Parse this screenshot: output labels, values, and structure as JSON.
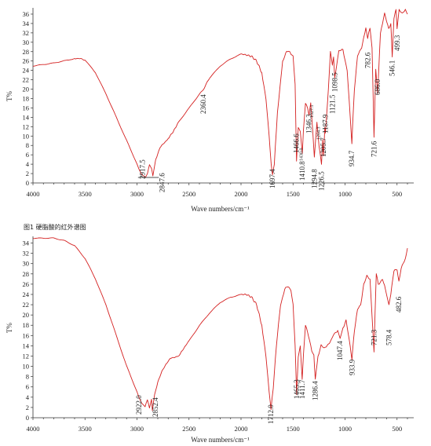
{
  "caption": "图1 硬脂酸的红外谱图",
  "chart_data": [
    {
      "type": "line",
      "xlabel": "Wave numbers/cm⁻¹",
      "ylabel": "T%",
      "xlim": [
        4000,
        400
      ],
      "ylim": [
        0,
        37
      ],
      "x_ticks": [
        4000,
        3500,
        3000,
        2500,
        2000,
        1500,
        1000,
        500
      ],
      "y_ticks": [
        0,
        2,
        4,
        6,
        8,
        10,
        12,
        14,
        16,
        18,
        20,
        22,
        24,
        26,
        28,
        30,
        32,
        34,
        36
      ],
      "series": [
        {
          "x": [
            4000,
            3800,
            3600,
            3560,
            3500,
            3400,
            3300,
            3200,
            3100,
            3000,
            2960,
            2930,
            2917.5,
            2900,
            2880,
            2860,
            2847.6,
            2820,
            2780,
            2740,
            2700,
            2650,
            2600,
            2500,
            2400,
            2360.4,
            2300,
            2200,
            2100,
            2000,
            1950,
            1900,
            1850,
            1800,
            1760,
            1730,
            1710,
            1697.4,
            1680,
            1650,
            1600,
            1560,
            1530,
            1500,
            1480,
            1466.6,
            1450,
            1430,
            1410.8,
            1400,
            1380,
            1360,
            1346.3,
            1330,
            1310,
            1294.8,
            1270,
            1250,
            1226.5,
            1215,
            1205.7,
            1195,
            1187.9,
            1160,
            1140,
            1121.5,
            1110,
            1098.5,
            1060,
            1020,
            980,
            950,
            934.7,
            910,
            880,
            840,
            800,
            782.6,
            760,
            740,
            721.6,
            705,
            686.0,
            660,
            620,
            580,
            560,
            546.1,
            530,
            510,
            499.3,
            480,
            450,
            420,
            400
          ],
          "y": [
            25,
            25.6,
            26.5,
            26.6,
            26.2,
            23.5,
            19,
            14,
            9,
            4,
            2,
            1.3,
            1.2,
            2,
            4,
            3,
            1.5,
            5,
            7.5,
            8.5,
            9.5,
            11,
            13,
            16,
            19,
            20,
            22.5,
            25,
            26.5,
            27.5,
            27.3,
            27,
            26,
            23.5,
            18,
            10,
            4,
            1.5,
            4,
            15,
            26,
            28,
            28,
            27,
            21,
            4.5,
            12,
            11,
            6.5,
            11,
            17,
            16,
            14.5,
            17,
            11,
            5.5,
            13,
            8,
            4,
            9,
            5.5,
            12,
            10.5,
            20,
            28,
            25,
            27,
            22.5,
            28,
            28.5,
            24,
            14,
            8.5,
            20,
            27,
            29,
            33,
            31,
            33,
            29,
            10,
            24,
            19,
            32,
            36,
            33,
            34,
            27,
            35,
            37,
            33,
            37,
            36,
            37,
            36
          ]
        }
      ],
      "peaks": [
        {
          "x": 2917.5,
          "label": "2917.5"
        },
        {
          "x": 2847.6,
          "label": "2847.6"
        },
        {
          "x": 2360.4,
          "label": "2360.4"
        },
        {
          "x": 1697.4,
          "label": "1697.4"
        },
        {
          "x": 1466.6,
          "label": "1466.6"
        },
        {
          "x": 1430.0,
          "label": "1430.0"
        },
        {
          "x": 1410.8,
          "label": "1410.8"
        },
        {
          "x": 1346.3,
          "label": "1346.3"
        },
        {
          "x": 1327.1,
          "label": "1327.1"
        },
        {
          "x": 1294.8,
          "label": "1294.8"
        },
        {
          "x": 1264.3,
          "label": "1264.3"
        },
        {
          "x": 1226.5,
          "label": "1226.5"
        },
        {
          "x": 1205.7,
          "label": "1205.7"
        },
        {
          "x": 1187.9,
          "label": "1187.9"
        },
        {
          "x": 1121.5,
          "label": "1121.5"
        },
        {
          "x": 1098.5,
          "label": "1098.5"
        },
        {
          "x": 934.7,
          "label": "934.7"
        },
        {
          "x": 782.6,
          "label": "782.6"
        },
        {
          "x": 721.6,
          "label": "721.6"
        },
        {
          "x": 686.0,
          "label": "686.0"
        },
        {
          "x": 546.1,
          "label": "546.1"
        },
        {
          "x": 499.3,
          "label": "499.3"
        }
      ]
    },
    {
      "type": "line",
      "xlabel": "Wave numbers/cm⁻¹",
      "ylabel": "T%",
      "xlim": [
        4000,
        400
      ],
      "ylim": [
        0,
        35
      ],
      "x_ticks": [
        4000,
        3500,
        3000,
        2500,
        2000,
        1500,
        1000,
        500
      ],
      "x_tick_labels": [
        "4000",
        "3500",
        "3000",
        "2500",
        "2000",
        "1500",
        "1000",
        "500"
      ],
      "y_ticks": [
        0,
        2,
        4,
        6,
        8,
        10,
        12,
        14,
        16,
        18,
        20,
        22,
        24,
        26,
        28,
        30,
        32,
        34
      ],
      "series": [
        {
          "x": [
            4000,
            3800,
            3700,
            3600,
            3500,
            3400,
            3300,
            3200,
            3100,
            3000,
            2960,
            2940,
            2922.0,
            2900,
            2880,
            2860,
            2852.4,
            2830,
            2800,
            2760,
            2720,
            2680,
            2640,
            2600,
            2550,
            2500,
            2400,
            2300,
            2200,
            2100,
            2000,
            1950,
            1900,
            1850,
            1800,
            1760,
            1730,
            1712.0,
            1690,
            1660,
            1620,
            1580,
            1550,
            1520,
            1500,
            1480,
            1465.3,
            1450,
            1430,
            1411.7,
            1400,
            1380,
            1350,
            1320,
            1300,
            1286.4,
            1260,
            1230,
            1200,
            1150,
            1100,
            1070,
            1047.4,
            1020,
            990,
            960,
            933.9,
            910,
            880,
            850,
            820,
            790,
            760,
            740,
            721.3,
            700,
            680,
            640,
            600,
            578.4,
            560,
            530,
            500,
            482.6,
            460,
            440,
            420,
            400
          ],
          "y": [
            35,
            35,
            34.5,
            33.5,
            31,
            27,
            22,
            16,
            10,
            5,
            3,
            2.5,
            2.2,
            3.5,
            2,
            3.5,
            1.5,
            4.5,
            7,
            9,
            10.5,
            11.5,
            11.8,
            12,
            13.5,
            15,
            18,
            20.5,
            22.5,
            23.5,
            24,
            24,
            23.5,
            22,
            18,
            12,
            5,
            1.5,
            6,
            14,
            22,
            25,
            25.5,
            25,
            22,
            14,
            4.5,
            12,
            14,
            7.5,
            12,
            18,
            16,
            13,
            12,
            7.5,
            12,
            14,
            13.5,
            14.5,
            16.5,
            17,
            15.5,
            17.5,
            19,
            15,
            11.5,
            17,
            21,
            22,
            26,
            27.5,
            27,
            20,
            13,
            28,
            26,
            27,
            24,
            22,
            24,
            28.5,
            29,
            26.5,
            29,
            30,
            31,
            33
          ]
        }
      ],
      "peaks": [
        {
          "x": 2922.0,
          "label": "2922.0"
        },
        {
          "x": 2852.4,
          "label": "2852.4"
        },
        {
          "x": 1712.0,
          "label": "1712.0"
        },
        {
          "x": 1465.3,
          "label": "1465.3"
        },
        {
          "x": 1411.7,
          "label": "1411.7"
        },
        {
          "x": 1286.4,
          "label": "1286.4"
        },
        {
          "x": 1047.4,
          "label": "1047.4"
        },
        {
          "x": 933.9,
          "label": "933.9"
        },
        {
          "x": 721.3,
          "label": "721.3"
        },
        {
          "x": 578.4,
          "label": "578.4"
        },
        {
          "x": 482.6,
          "label": "482.6"
        }
      ]
    }
  ]
}
